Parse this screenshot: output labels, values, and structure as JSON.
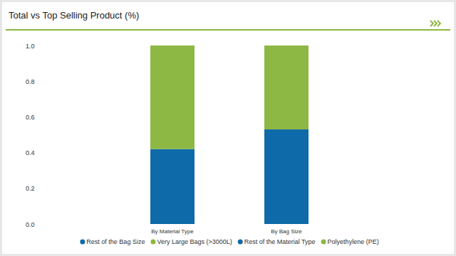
{
  "chart_data": {
    "type": "bar",
    "title": "Total vs Top Selling Product (%)",
    "categories": [
      "By Material Type",
      "By Bag Size"
    ],
    "series": [
      {
        "name": "Rest of the Bag Size",
        "color": "#0e6aa8",
        "values": [
          null,
          0.53
        ]
      },
      {
        "name": "Very Large Bags (>3000L)",
        "color": "#8db843",
        "values": [
          null,
          0.47
        ]
      },
      {
        "name": "Rest of the Material Type",
        "color": "#0e6aa8",
        "values": [
          0.42,
          null
        ]
      },
      {
        "name": "Polyethylene (PE)",
        "color": "#8db843",
        "values": [
          0.58,
          null
        ]
      }
    ],
    "stacked": true,
    "ylim": [
      0,
      1.0
    ],
    "yticks": [
      {
        "value": 0,
        "label": "0.0"
      },
      0.2,
      0.4,
      0.6,
      0.8,
      {
        "value": 1.0,
        "label": "1.0"
      }
    ],
    "grid": false,
    "legend": "bottom"
  }
}
